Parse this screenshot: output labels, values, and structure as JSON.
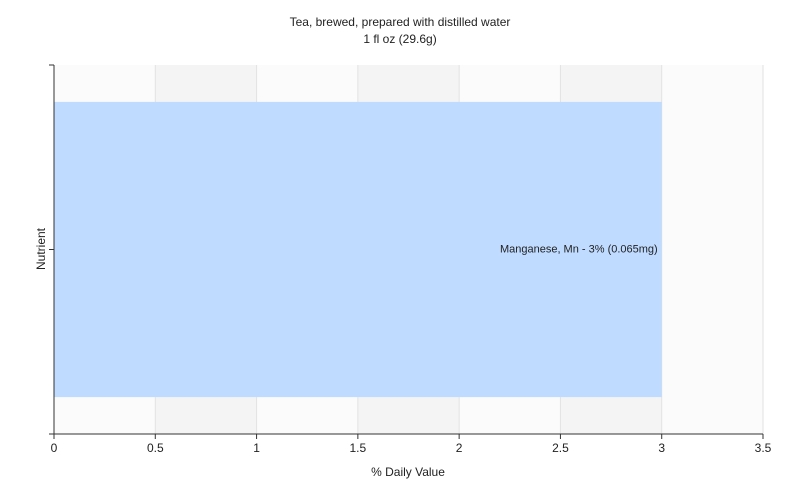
{
  "chart_data": {
    "type": "barh",
    "title": "Tea, brewed, prepared with distilled water",
    "subtitle": "1 fl oz (29.6g)",
    "xlabel": "% Daily Value",
    "ylabel": "Nutrient",
    "categories": [
      null
    ],
    "values": [
      3
    ],
    "value_labels": [
      "Manganese, Mn - 3% (0.065mg)"
    ],
    "color": "#bfdbff",
    "xlim": [
      0,
      3.5
    ],
    "xticks": [
      0,
      0.5,
      1,
      1.5,
      2,
      2.5,
      3,
      3.5
    ],
    "grid": true
  }
}
